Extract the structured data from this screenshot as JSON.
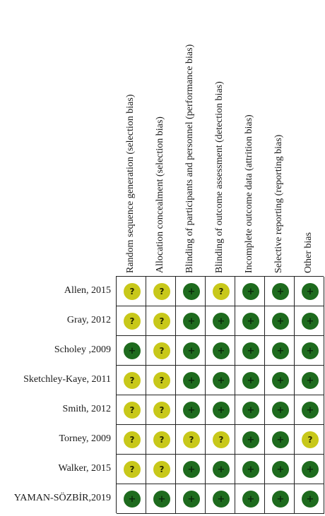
{
  "columns": [
    "Random sequence generation (selection bias)",
    "Allocation concealment (selection bias)",
    "Blinding of participants and personnel (performance bias)",
    "Blinding of outcome assessment (detection bias)",
    "Incomplete outcome data (attrition bias)",
    "Selective reporting (reporting bias)",
    "Other bias"
  ],
  "legend_symbols": {
    "low": "+",
    "unclear": "?"
  },
  "colors": {
    "low": "#1e6b1e",
    "unclear": "#c8c81a"
  },
  "rows": [
    {
      "study": "Allen, 2015",
      "judgements": [
        "unclear",
        "unclear",
        "low",
        "unclear",
        "low",
        "low",
        "low"
      ]
    },
    {
      "study": "Gray, 2012",
      "judgements": [
        "unclear",
        "unclear",
        "low",
        "low",
        "low",
        "low",
        "low"
      ]
    },
    {
      "study": "Scholey ,2009",
      "judgements": [
        "low",
        "unclear",
        "low",
        "low",
        "low",
        "low",
        "low"
      ]
    },
    {
      "study": "Sketchley-Kaye, 2011",
      "judgements": [
        "unclear",
        "unclear",
        "low",
        "low",
        "low",
        "low",
        "low"
      ]
    },
    {
      "study": "Smith, 2012",
      "judgements": [
        "unclear",
        "unclear",
        "low",
        "low",
        "low",
        "low",
        "low"
      ]
    },
    {
      "study": "Torney, 2009",
      "judgements": [
        "unclear",
        "unclear",
        "unclear",
        "unclear",
        "low",
        "low",
        "unclear"
      ]
    },
    {
      "study": "Walker, 2015",
      "judgements": [
        "unclear",
        "unclear",
        "low",
        "low",
        "low",
        "low",
        "low"
      ]
    },
    {
      "study": "YAMAN-SÖZBİR,2019",
      "judgements": [
        "low",
        "low",
        "low",
        "low",
        "low",
        "low",
        "low"
      ]
    }
  ]
}
